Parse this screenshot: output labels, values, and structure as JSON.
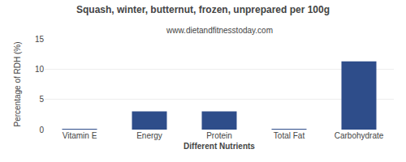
{
  "chart_data": {
    "type": "bar",
    "title": "Squash, winter, butternut, frozen, unprepared per 100g",
    "subtitle": "www.dietandfitnesstoday.com",
    "xlabel": "Different Nutrients",
    "ylabel": "Percentage of RDH (%)",
    "categories": [
      "Vitamin E",
      "Energy",
      "Protein",
      "Total Fat",
      "Carbohydrate"
    ],
    "values": [
      0.1,
      3.0,
      3.0,
      0.1,
      11.3
    ],
    "color": "#2e4d8a",
    "ylim": [
      0,
      15
    ],
    "yticks": [
      0,
      5,
      10,
      15
    ],
    "grid": true
  }
}
